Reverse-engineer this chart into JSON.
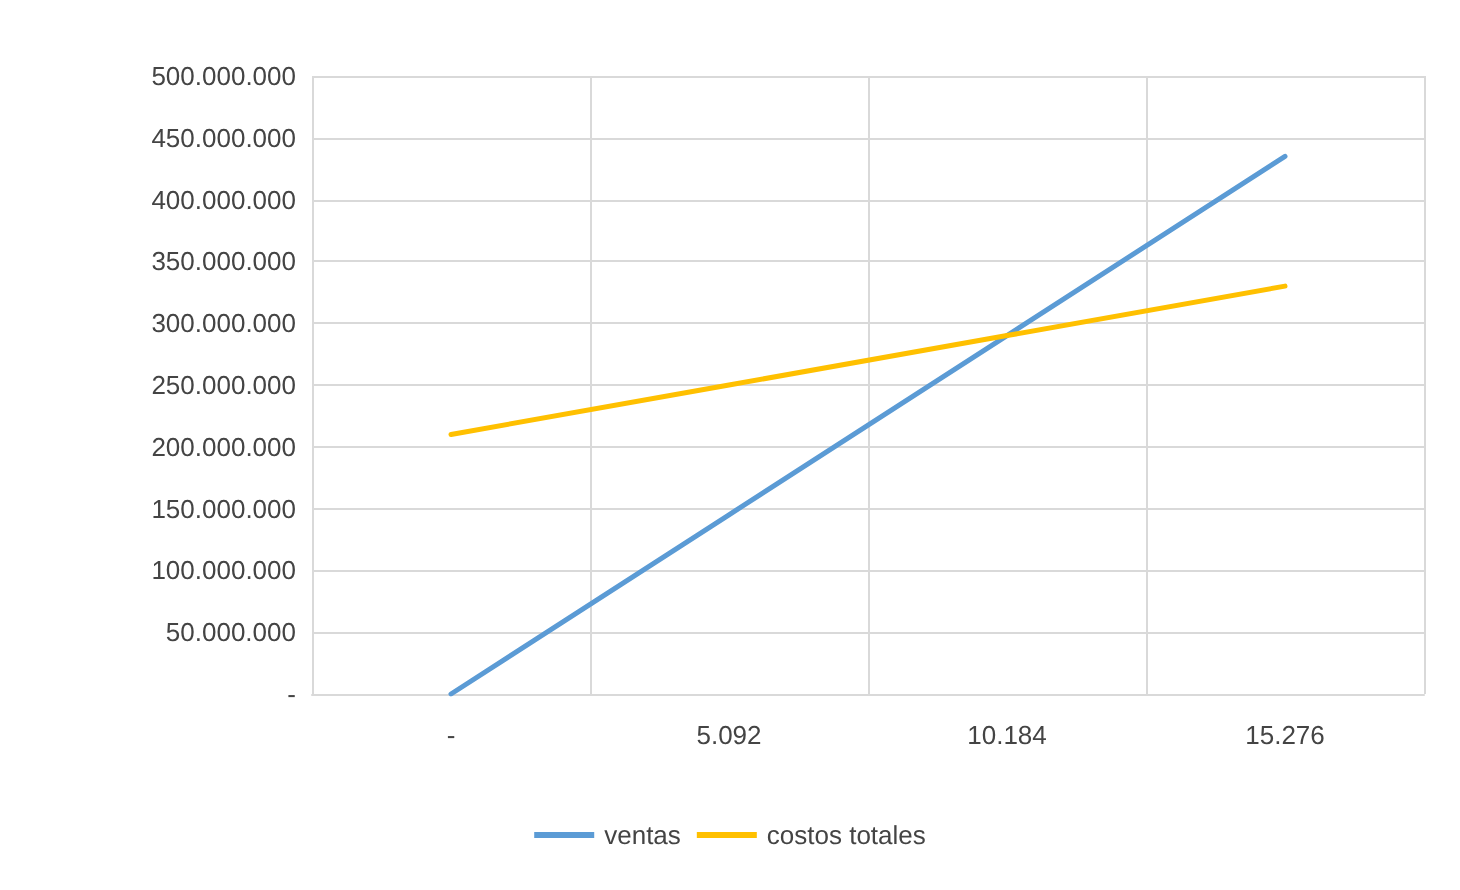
{
  "chart_data": {
    "type": "line",
    "categories": [
      "-",
      "5.092",
      "10.184",
      "15.276"
    ],
    "series": [
      {
        "name": "ventas",
        "color": "#5b9bd5",
        "values": [
          0,
          145000000,
          290000000,
          435000000
        ]
      },
      {
        "name": "costos totales",
        "color": "#ffc000",
        "values": [
          210000000,
          250000000,
          290000000,
          330000000
        ]
      }
    ],
    "ylim": [
      0,
      500000000
    ],
    "yticks": [
      {
        "value": 0,
        "label": "-"
      },
      {
        "value": 50000000,
        "label": "50.000.000"
      },
      {
        "value": 100000000,
        "label": "100.000.000"
      },
      {
        "value": 150000000,
        "label": "150.000.000"
      },
      {
        "value": 200000000,
        "label": "200.000.000"
      },
      {
        "value": 250000000,
        "label": "250.000.000"
      },
      {
        "value": 300000000,
        "label": "300.000.000"
      },
      {
        "value": 350000000,
        "label": "350.000.000"
      },
      {
        "value": 400000000,
        "label": "400.000.000"
      },
      {
        "value": 450000000,
        "label": "450.000.000"
      },
      {
        "value": 500000000,
        "label": "500.000.000"
      }
    ],
    "grid": true,
    "legend": "bottom",
    "marker": "none",
    "line_style": "solid"
  }
}
